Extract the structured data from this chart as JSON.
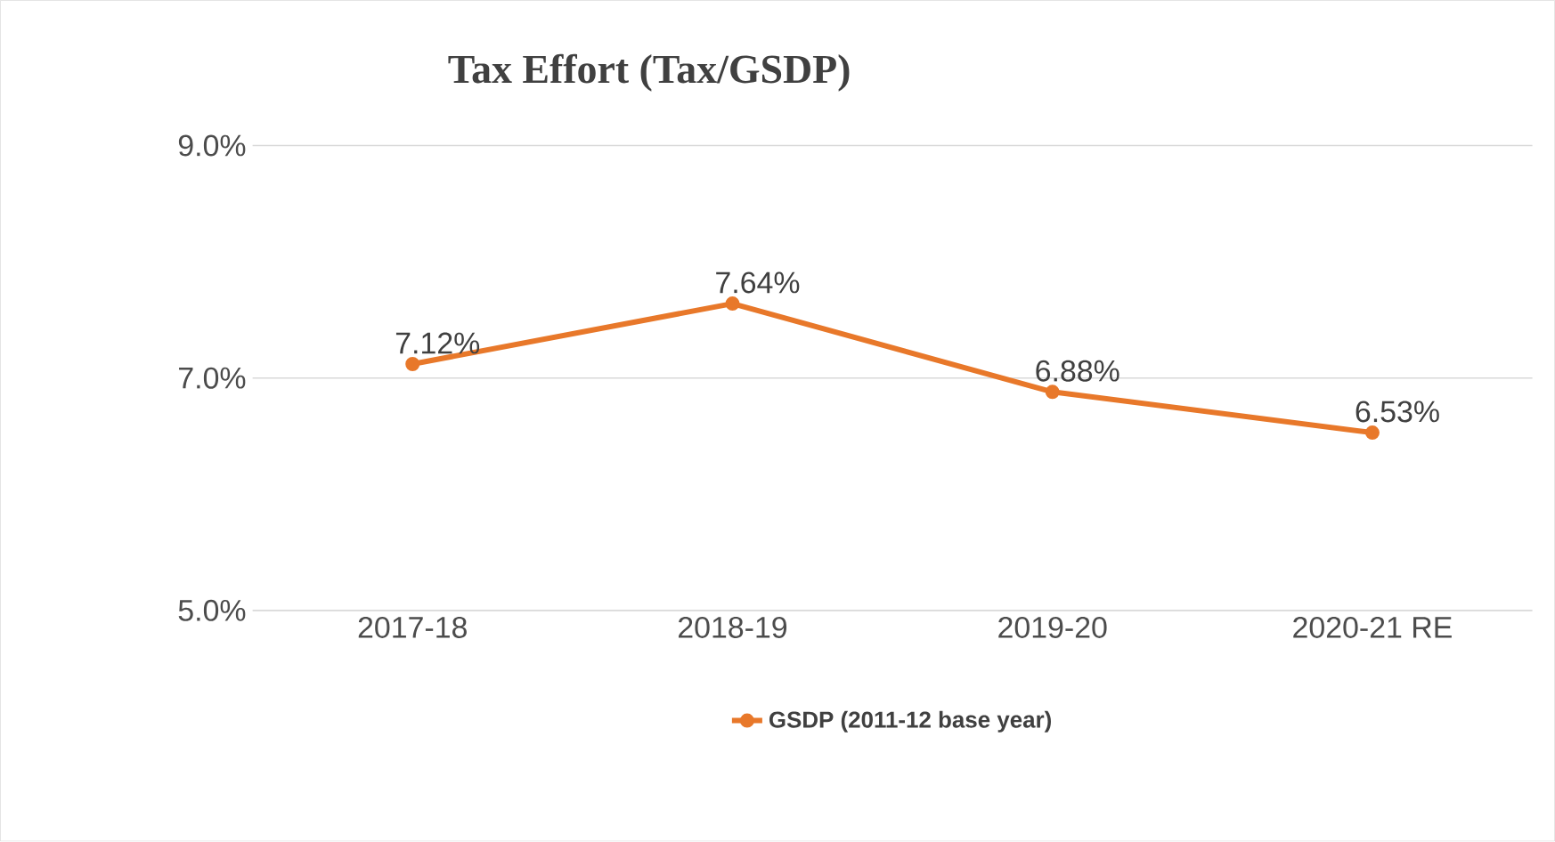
{
  "chart_data": {
    "type": "line",
    "title": "Tax Effort (Tax/GSDP)",
    "categories": [
      "2017-18",
      "2018-19",
      "2019-20",
      "2020-21 RE"
    ],
    "series": [
      {
        "name": "GSDP (2011-12 base year)",
        "color": "#e8782a",
        "values": [
          7.12,
          7.64,
          6.88,
          6.53
        ],
        "value_labels": [
          "7.12%",
          "7.64%",
          "6.88%",
          "6.53%"
        ]
      }
    ],
    "ylim": [
      5,
      9
    ],
    "yticks": [
      {
        "value": 5,
        "label": "5.0%"
      },
      {
        "value": 7,
        "label": "7.0%"
      },
      {
        "value": 9,
        "label": "9.0%"
      }
    ],
    "grid": "y",
    "legend": "bottom",
    "marker": "circle",
    "line_style": "solid"
  }
}
